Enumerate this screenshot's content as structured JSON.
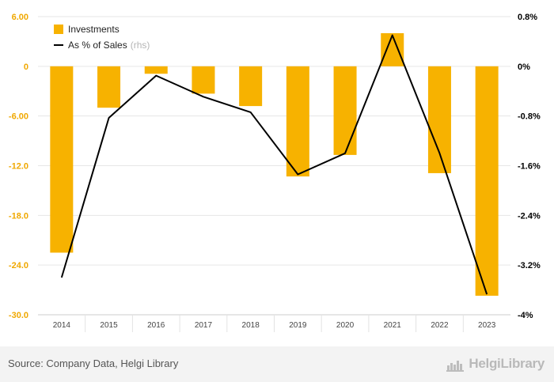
{
  "chart_data": {
    "type": "bar",
    "categories": [
      "2014",
      "2015",
      "2016",
      "2017",
      "2018",
      "2019",
      "2020",
      "2021",
      "2022",
      "2023"
    ],
    "series": [
      {
        "name": "Investments",
        "type": "bar",
        "axis": "left",
        "values": [
          -22.5,
          -5.0,
          -0.9,
          -3.3,
          -4.8,
          -13.3,
          -10.7,
          4.0,
          -12.9,
          -27.7
        ]
      },
      {
        "name": "As % of Sales",
        "type": "line",
        "axis": "right",
        "values": [
          -3.4,
          -0.83,
          -0.15,
          -0.49,
          -0.74,
          -1.74,
          -1.4,
          0.5,
          -1.4,
          -3.67
        ]
      }
    ],
    "left_axis": {
      "ticks": [
        "6.00",
        "0",
        "-6.00",
        "-12.0",
        "-18.0",
        "-24.0",
        "-30.0"
      ],
      "ylim": [
        -30,
        6
      ]
    },
    "right_axis": {
      "ticks": [
        "0.8%",
        "0%",
        "-0.8%",
        "-1.6%",
        "-2.4%",
        "-3.2%",
        "-4%"
      ],
      "ylim": [
        -4,
        0.8
      ]
    },
    "grid": true,
    "legend_position": "top-left"
  },
  "legend": {
    "bar_label": "Investments",
    "line_label": "As % of Sales",
    "line_suffix": "(rhs)"
  },
  "colors": {
    "bar": "#f7b200",
    "line": "#000000",
    "left_tick": "#f0a800",
    "right_tick": "#000000",
    "grid": "#e6e6e6"
  },
  "footer": {
    "source": "Source: Company Data, Helgi Library",
    "logo": "HelgiLibrary"
  }
}
